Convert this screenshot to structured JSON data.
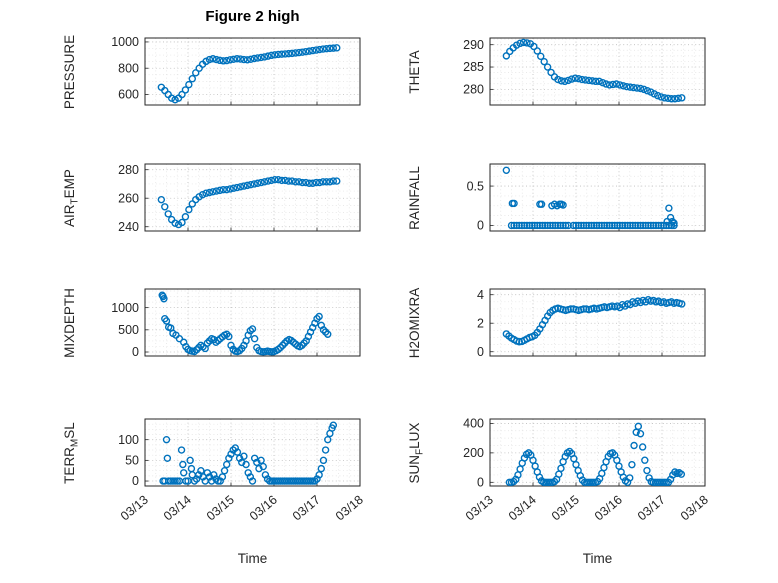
{
  "figure": {
    "title": "Figure 2 high",
    "xlabel": "Time",
    "colors": {
      "marker": "#0072BD",
      "axis": "#262626",
      "grid_major": "#bdbdbd",
      "grid_minor": "#e2e2e2"
    }
  },
  "x_axis": {
    "range": [
      13,
      18
    ],
    "ticks": [
      13,
      14,
      15,
      16,
      17,
      18
    ],
    "labels": [
      "03/13",
      "03/14",
      "03/15",
      "03/16",
      "03/17",
      "03/18"
    ]
  },
  "chart_data": [
    {
      "type": "scatter",
      "ylabel_pre": "PRESSURE",
      "ylabel_sub": "",
      "ylabel_post": "",
      "yticks": [
        600,
        800,
        1000
      ],
      "ylim": [
        520,
        1030
      ],
      "x": [
        13.38,
        13.46,
        13.54,
        13.62,
        13.7,
        13.78,
        13.86,
        13.94,
        14.02,
        14.1,
        14.18,
        14.26,
        14.34,
        14.42,
        14.5,
        14.58,
        14.66,
        14.74,
        14.82,
        14.9,
        14.98,
        15.06,
        15.14,
        15.22,
        15.3,
        15.38,
        15.46,
        15.54,
        15.62,
        15.7,
        15.78,
        15.86,
        15.94,
        16.02,
        16.1,
        16.18,
        16.26,
        16.34,
        16.42,
        16.5,
        16.58,
        16.66,
        16.74,
        16.82,
        16.9,
        16.98,
        17.06,
        17.14,
        17.22,
        17.3,
        17.38,
        17.46
      ],
      "y": [
        655,
        630,
        600,
        572,
        560,
        572,
        600,
        635,
        675,
        720,
        765,
        800,
        830,
        852,
        866,
        872,
        866,
        860,
        856,
        858,
        864,
        868,
        872,
        870,
        866,
        864,
        868,
        874,
        878,
        882,
        886,
        892,
        898,
        902,
        905,
        907,
        909,
        911,
        913,
        916,
        919,
        922,
        926,
        930,
        934,
        938,
        942,
        946,
        949,
        951,
        953,
        955
      ]
    },
    {
      "type": "scatter",
      "ylabel_pre": "THETA",
      "ylabel_sub": "",
      "ylabel_post": "",
      "yticks": [
        280,
        285,
        290
      ],
      "ylim": [
        276.5,
        291.5
      ],
      "x": [
        13.38,
        13.46,
        13.54,
        13.62,
        13.7,
        13.78,
        13.86,
        13.94,
        14.02,
        14.1,
        14.18,
        14.26,
        14.34,
        14.42,
        14.5,
        14.58,
        14.66,
        14.74,
        14.82,
        14.9,
        14.98,
        15.06,
        15.14,
        15.22,
        15.3,
        15.38,
        15.46,
        15.54,
        15.62,
        15.7,
        15.78,
        15.86,
        15.94,
        16.02,
        16.1,
        16.18,
        16.26,
        16.34,
        16.42,
        16.5,
        16.58,
        16.66,
        16.74,
        16.82,
        16.9,
        16.98,
        17.06,
        17.14,
        17.22,
        17.3,
        17.38,
        17.46
      ],
      "y": [
        287.5,
        288.5,
        289.3,
        289.9,
        290.3,
        290.5,
        290.4,
        290.2,
        289.6,
        288.6,
        287.4,
        286.2,
        285.0,
        283.8,
        282.8,
        282.2,
        281.9,
        281.8,
        282.0,
        282.3,
        282.5,
        282.4,
        282.2,
        282.1,
        282.0,
        281.9,
        281.8,
        281.8,
        281.5,
        281.2,
        281.0,
        281.1,
        281.2,
        281.0,
        280.8,
        280.6,
        280.5,
        280.4,
        280.3,
        280.2,
        280.0,
        279.7,
        279.4,
        279.0,
        278.6,
        278.3,
        278.1,
        278.0,
        277.9,
        277.9,
        278.0,
        278.1
      ]
    },
    {
      "type": "scatter",
      "ylabel_pre": "AIR",
      "ylabel_sub": "T",
      "ylabel_post": "EMP",
      "yticks": [
        240,
        260,
        280
      ],
      "ylim": [
        237,
        284
      ],
      "x": [
        13.38,
        13.46,
        13.54,
        13.62,
        13.7,
        13.78,
        13.86,
        13.94,
        14.02,
        14.1,
        14.18,
        14.26,
        14.34,
        14.42,
        14.5,
        14.58,
        14.66,
        14.74,
        14.82,
        14.9,
        14.98,
        15.06,
        15.14,
        15.22,
        15.3,
        15.38,
        15.46,
        15.54,
        15.62,
        15.7,
        15.78,
        15.86,
        15.94,
        16.02,
        16.1,
        16.18,
        16.26,
        16.34,
        16.42,
        16.5,
        16.58,
        16.66,
        16.74,
        16.82,
        16.9,
        16.98,
        17.06,
        17.14,
        17.22,
        17.3,
        17.38,
        17.46
      ],
      "y": [
        259,
        254,
        249,
        245,
        242.5,
        241.5,
        243,
        247,
        252,
        256,
        259,
        261,
        262.5,
        263.5,
        264,
        264.5,
        265,
        265.5,
        266,
        266,
        266.5,
        267,
        267.5,
        268,
        268.5,
        269,
        269.5,
        270,
        270.5,
        271,
        271.5,
        272,
        272.5,
        273,
        273,
        272.5,
        272.5,
        272,
        272,
        271.5,
        271.5,
        271,
        271,
        270.5,
        270.5,
        271,
        271,
        271.5,
        271.5,
        271.5,
        272,
        272
      ]
    },
    {
      "type": "scatter",
      "ylabel_pre": "RAINFALL",
      "ylabel_sub": "",
      "ylabel_post": "",
      "yticks": [
        0,
        0.5
      ],
      "ylim": [
        -0.07,
        0.78
      ],
      "x": [
        13.38,
        13.52,
        13.56,
        14.16,
        14.2,
        14.44,
        14.5,
        14.56,
        14.62,
        14.66,
        14.7,
        17.12,
        17.16,
        17.2,
        17.24,
        17.28,
        13.5,
        13.56,
        13.62,
        13.68,
        13.74,
        13.8,
        13.86,
        13.92,
        13.98,
        14.04,
        14.1,
        14.16,
        14.22,
        14.28,
        14.34,
        14.4,
        14.46,
        14.52,
        14.58,
        14.64,
        14.7,
        14.76,
        14.82,
        14.94,
        15.0,
        15.06,
        15.12,
        15.18,
        15.24,
        15.3,
        15.36,
        15.42,
        15.48,
        15.54,
        15.6,
        15.66,
        15.72,
        15.78,
        15.84,
        15.9,
        15.96,
        16.02,
        16.08,
        16.14,
        16.2,
        16.26,
        16.32,
        16.38,
        16.44,
        16.5,
        16.56,
        16.62,
        16.68,
        16.74,
        16.8,
        16.86,
        16.92,
        16.98,
        17.04,
        17.1,
        17.16,
        17.22,
        17.28
      ],
      "y": [
        0.7,
        0.28,
        0.28,
        0.27,
        0.27,
        0.25,
        0.27,
        0.25,
        0.27,
        0.27,
        0.26,
        0.05,
        0.22,
        0.1,
        0.05,
        0.03,
        0,
        0,
        0,
        0,
        0,
        0,
        0,
        0,
        0,
        0,
        0,
        0,
        0,
        0,
        0,
        0,
        0,
        0,
        0,
        0,
        0,
        0,
        0,
        0,
        0,
        0,
        0,
        0,
        0,
        0,
        0,
        0,
        0,
        0,
        0,
        0,
        0,
        0,
        0,
        0,
        0,
        0,
        0,
        0,
        0,
        0,
        0,
        0,
        0,
        0,
        0,
        0,
        0,
        0,
        0,
        0,
        0,
        0,
        0,
        0,
        0,
        0,
        0
      ]
    },
    {
      "type": "scatter",
      "ylabel_pre": "MIXDEPTH",
      "ylabel_sub": "",
      "ylabel_post": "",
      "yticks": [
        0,
        500,
        1000
      ],
      "ylim": [
        -90,
        1420
      ],
      "x": [
        13.4,
        13.42,
        13.44,
        13.46,
        13.5,
        13.55,
        13.6,
        13.65,
        13.72,
        13.8,
        13.9,
        13.95,
        14.0,
        14.05,
        14.1,
        14.15,
        14.2,
        14.25,
        14.3,
        14.35,
        14.4,
        14.45,
        14.5,
        14.55,
        14.6,
        14.65,
        14.7,
        14.75,
        14.8,
        14.85,
        14.9,
        14.95,
        15.0,
        15.05,
        15.1,
        15.15,
        15.2,
        15.25,
        15.3,
        15.35,
        15.4,
        15.45,
        15.5,
        15.55,
        15.6,
        15.65,
        15.7,
        15.75,
        15.8,
        15.85,
        15.9,
        15.95,
        16.0,
        16.05,
        16.1,
        16.15,
        16.2,
        16.25,
        16.3,
        16.35,
        16.4,
        16.45,
        16.5,
        16.55,
        16.6,
        16.65,
        16.7,
        16.75,
        16.8,
        16.85,
        16.9,
        16.95,
        17.0,
        17.05,
        17.1,
        17.15,
        17.2,
        17.25
      ],
      "y": [
        1280,
        1250,
        1200,
        750,
        700,
        560,
        540,
        420,
        380,
        300,
        220,
        120,
        60,
        30,
        20,
        10,
        50,
        100,
        150,
        120,
        80,
        200,
        250,
        300,
        280,
        220,
        260,
        300,
        340,
        380,
        400,
        350,
        150,
        60,
        20,
        10,
        30,
        80,
        150,
        250,
        380,
        480,
        520,
        300,
        100,
        30,
        10,
        5,
        10,
        20,
        10,
        5,
        10,
        30,
        60,
        100,
        150,
        200,
        250,
        280,
        260,
        220,
        180,
        140,
        120,
        150,
        200,
        250,
        350,
        450,
        550,
        650,
        750,
        800,
        600,
        500,
        450,
        400
      ]
    },
    {
      "type": "scatter",
      "ylabel_pre": "H2OMIXRA",
      "ylabel_sub": "",
      "ylabel_post": "",
      "yticks": [
        0,
        2,
        4
      ],
      "ylim": [
        -0.3,
        4.4
      ],
      "x": [
        13.38,
        13.44,
        13.5,
        13.56,
        13.62,
        13.68,
        13.74,
        13.8,
        13.86,
        13.92,
        13.98,
        14.04,
        14.1,
        14.16,
        14.22,
        14.28,
        14.34,
        14.4,
        14.46,
        14.52,
        14.58,
        14.64,
        14.7,
        14.76,
        14.82,
        14.88,
        14.94,
        15.0,
        15.06,
        15.12,
        15.18,
        15.24,
        15.3,
        15.36,
        15.42,
        15.48,
        15.54,
        15.6,
        15.66,
        15.72,
        15.78,
        15.84,
        15.9,
        15.96,
        16.02,
        16.08,
        16.14,
        16.2,
        16.26,
        16.32,
        16.38,
        16.44,
        16.5,
        16.56,
        16.62,
        16.68,
        16.74,
        16.8,
        16.86,
        16.92,
        16.98,
        17.04,
        17.1,
        17.16,
        17.22,
        17.28,
        17.34,
        17.4,
        17.46
      ],
      "y": [
        1.25,
        1.1,
        0.95,
        0.85,
        0.75,
        0.7,
        0.72,
        0.8,
        0.9,
        1.0,
        1.05,
        1.15,
        1.35,
        1.6,
        1.9,
        2.2,
        2.5,
        2.75,
        2.9,
        3.0,
        3.05,
        3.0,
        2.95,
        2.9,
        2.95,
        3.0,
        3.0,
        2.95,
        2.9,
        2.95,
        3.0,
        3.0,
        2.95,
        3.0,
        3.05,
        3.0,
        3.05,
        3.1,
        3.15,
        3.1,
        3.15,
        3.2,
        3.15,
        3.2,
        3.1,
        3.3,
        3.2,
        3.35,
        3.3,
        3.5,
        3.4,
        3.55,
        3.45,
        3.6,
        3.5,
        3.65,
        3.55,
        3.6,
        3.5,
        3.55,
        3.45,
        3.5,
        3.4,
        3.45,
        3.5,
        3.4,
        3.45,
        3.4,
        3.35
      ]
    },
    {
      "type": "scatter",
      "ylabel_pre": "TERR",
      "ylabel_sub": "M",
      "ylabel_post": "SL",
      "yticks": [
        0,
        50,
        100
      ],
      "ylim": [
        -12,
        150
      ],
      "x": [
        13.42,
        13.46,
        13.5,
        13.52,
        13.55,
        13.6,
        13.65,
        13.7,
        13.75,
        13.8,
        13.85,
        13.88,
        13.9,
        13.95,
        14.0,
        14.05,
        14.08,
        14.1,
        14.15,
        14.2,
        14.25,
        14.3,
        14.35,
        14.4,
        14.45,
        14.5,
        14.55,
        14.6,
        14.65,
        14.7,
        14.75,
        14.8,
        14.85,
        14.9,
        14.95,
        15.0,
        15.05,
        15.1,
        15.15,
        15.2,
        15.25,
        15.3,
        15.35,
        15.4,
        15.45,
        15.5,
        15.55,
        15.6,
        15.65,
        15.7,
        15.75,
        15.8,
        15.85,
        15.9,
        15.95,
        16.0,
        16.05,
        16.1,
        16.15,
        16.2,
        16.25,
        16.3,
        16.35,
        16.4,
        16.45,
        16.5,
        16.55,
        16.6,
        16.65,
        16.7,
        16.75,
        16.8,
        16.85,
        16.9,
        16.95,
        17.0,
        17.05,
        17.1,
        17.15,
        17.2,
        17.25,
        17.3,
        17.35,
        17.38
      ],
      "y": [
        0,
        0,
        100,
        55,
        0,
        0,
        0,
        0,
        0,
        0,
        75,
        40,
        20,
        0,
        0,
        50,
        30,
        15,
        0,
        5,
        15,
        25,
        10,
        0,
        20,
        10,
        0,
        15,
        5,
        0,
        0,
        10,
        25,
        40,
        55,
        65,
        75,
        80,
        70,
        55,
        45,
        60,
        40,
        20,
        10,
        0,
        55,
        45,
        30,
        50,
        35,
        15,
        5,
        0,
        0,
        0,
        0,
        0,
        0,
        0,
        0,
        0,
        0,
        0,
        0,
        0,
        0,
        0,
        0,
        0,
        0,
        0,
        0,
        0,
        0,
        5,
        15,
        30,
        50,
        75,
        100,
        115,
        128,
        135
      ]
    },
    {
      "type": "scatter",
      "ylabel_pre": "SUN",
      "ylabel_sub": "F",
      "ylabel_post": "LUX",
      "yticks": [
        0,
        200,
        400
      ],
      "ylim": [
        -25,
        430
      ],
      "x": [
        13.45,
        13.5,
        13.55,
        13.6,
        13.65,
        13.7,
        13.75,
        13.8,
        13.85,
        13.9,
        13.95,
        14.0,
        14.05,
        14.1,
        14.15,
        14.2,
        14.25,
        14.3,
        14.35,
        14.4,
        14.45,
        14.5,
        14.55,
        14.6,
        14.65,
        14.7,
        14.75,
        14.8,
        14.85,
        14.9,
        14.95,
        15.0,
        15.05,
        15.1,
        15.15,
        15.2,
        15.25,
        15.3,
        15.35,
        15.4,
        15.45,
        15.5,
        15.55,
        15.6,
        15.65,
        15.7,
        15.75,
        15.8,
        15.85,
        15.9,
        15.95,
        16.0,
        16.05,
        16.1,
        16.15,
        16.2,
        16.25,
        16.3,
        16.35,
        16.4,
        16.45,
        16.5,
        16.55,
        16.6,
        16.65,
        16.7,
        16.75,
        16.8,
        16.85,
        16.9,
        16.95,
        17.0,
        17.05,
        17.1,
        17.15,
        17.2,
        17.25,
        17.3,
        17.35,
        17.4,
        17.45
      ],
      "y": [
        0,
        0,
        5,
        20,
        50,
        90,
        130,
        165,
        190,
        200,
        185,
        150,
        110,
        70,
        35,
        10,
        0,
        0,
        0,
        0,
        0,
        5,
        20,
        55,
        95,
        140,
        175,
        200,
        210,
        195,
        160,
        120,
        80,
        45,
        15,
        0,
        0,
        0,
        0,
        0,
        0,
        5,
        25,
        60,
        100,
        140,
        175,
        195,
        200,
        185,
        150,
        110,
        70,
        35,
        10,
        0,
        30,
        120,
        250,
        340,
        380,
        330,
        240,
        150,
        80,
        30,
        5,
        0,
        0,
        0,
        0,
        0,
        0,
        0,
        0,
        20,
        50,
        70,
        60,
        65,
        55
      ]
    }
  ]
}
